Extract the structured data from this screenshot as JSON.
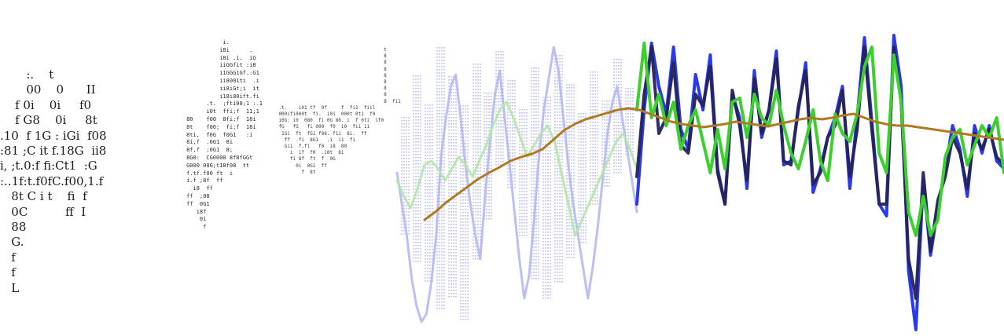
{
  "ascii_panels": {
    "panel_1": [
      "       :.    t",
      "       00    0      II",
      "    f 0i    0i     f0",
      "    f G8    0i     8t",
      ".10  f 1G : iGi  f08",
      ":81 ;C it f.18G  ii8",
      "i, ;t.0:f fi:Ct1  :G",
      ":..1f:t.f0fC.f00,1.f",
      "   8t C i t    fi  f",
      "   0C          ff  I",
      "   88",
      "   G.",
      "   f",
      "   f",
      "   L"
    ],
    "panel_2": [
      "                i.",
      "               i8i      .",
      "               i8i .i.  iG",
      "               iiGGfit :i8",
      "               i1GGG1Gf.:G1",
      "               ii8001ti  .i",
      "               ii8iGt;i  it",
      "               i18i80ift.fi",
      "           .t.  ;fti00;1 :.1",
      "           i0t  ffi;f  11;1",
      "     80    f00  8fi;f  18i",
      "     8t    f00;  fi;f  18i",
      "     8ti,  f0G  f0G1   :i",
      "     8i,f  .0G1  8i",
      "     8f,f  ;0G1  8;",
      "     8G0:  CG0000 8f8fGGt",
      "     G000 00G;t18f08  tt",
      "     f.tf.f00 ft  i",
      "     i.f ;8f  ff",
      "       i8  ff",
      "     ff  ;08",
      "     ff  0G1",
      "        i8f",
      "         0i",
      "          f"
    ],
    "panel_3": [
      "                                         t",
      "                                         8",
      "                                         8",
      "                                         8",
      "                                         8",
      "                                         8",
      "                                         8",
      "                                         8",
      "                                         8  fi1",
      "    .t.    i01 tf  0f     f  fi1  fiil",
      "    000ifi000t  fi.  i01  000t 0t1  f0",
      "    i0G: i0  080  fi 0G 80. i  f 0ti  if0",
      "    fG   fG   fi 000  f0  i0  fii 11",
      "     1Gi  ft  fG1 f08. f1i  8i.  ff",
      "      ff  .fi  8G1   .i  i1  fi",
      "      Gi1  f.fi   f0  i8  80",
      "        i  1f  f0  .i8t  8i",
      "        fi 8f  ft  f  0G",
      "          0i  0G1  ff",
      "            f  8t"
    ]
  },
  "waveform": {
    "colors": {
      "blue": "#2b3ae8",
      "navy": "#23235a",
      "green": "#3ccf2e",
      "brown": "#b07a22",
      "pale_blue": "#b4b8f2",
      "pale_green": "#b4e6a8"
    },
    "series": {
      "blue": [
        260,
        140,
        55,
        110,
        145,
        60,
        165,
        190,
        95,
        140,
        70,
        215,
        260,
        120,
        150,
        240,
        90,
        175,
        140,
        65,
        210,
        205,
        140,
        80,
        245,
        215,
        175,
        150,
        110,
        240,
        150,
        48,
        155,
        260,
        275,
        45,
        110,
        345,
        420,
        230,
        325,
        265,
        215,
        160,
        190,
        250,
        160,
        195,
        160,
        205,
        215
      ],
      "navy": [
        225,
        120,
        60,
        170,
        150,
        80,
        185,
        195,
        120,
        135,
        85,
        220,
        260,
        115,
        160,
        230,
        100,
        170,
        140,
        75,
        205,
        210,
        135,
        90,
        235,
        220,
        175,
        160,
        115,
        225,
        165,
        60,
        165,
        260,
        260,
        60,
        130,
        330,
        380,
        220,
        320,
        255,
        225,
        175,
        195,
        240,
        170,
        190,
        165,
        200,
        210
      ],
      "green": [
        140,
        55,
        150,
        120,
        160,
        130,
        190,
        160,
        140,
        180,
        220,
        165,
        215,
        130,
        125,
        175,
        120,
        150,
        160,
        115,
        160,
        195,
        215,
        180,
        140,
        205,
        230,
        145,
        170,
        180,
        145,
        85,
        60,
        195,
        220,
        70,
        130,
        270,
        300,
        250,
        300,
        280,
        200,
        175,
        165,
        210,
        185,
        160,
        175,
        150,
        220
      ],
      "brown": [
        280,
        270,
        258,
        248,
        238,
        228,
        220,
        213,
        205,
        200,
        196,
        190,
        178,
        166,
        158,
        152,
        148,
        144,
        140,
        138,
        140,
        145,
        150,
        155,
        158,
        160,
        162,
        160,
        158,
        155,
        157,
        159,
        161,
        158,
        155,
        152,
        150,
        152,
        150,
        147,
        145,
        150,
        155,
        158,
        160,
        160,
        162,
        164,
        166,
        168,
        170,
        172,
        174,
        176,
        178
      ],
      "pale_blue": [
        220,
        260,
        300,
        355,
        390,
        410,
        400,
        360,
        300,
        200,
        150,
        110,
        95,
        150,
        210,
        260,
        300,
        330,
        250,
        180,
        120,
        90,
        150,
        210,
        270,
        330,
        380,
        350,
        280,
        200,
        140,
        100,
        60,
        90,
        150,
        210,
        260,
        300,
        340,
        380,
        340,
        290,
        230,
        170,
        130,
        110,
        150,
        190,
        230,
        270
      ],
      "pale_green": [
        230,
        250,
        265,
        240,
        210,
        205,
        215,
        230,
        215,
        200,
        210,
        225,
        205,
        185,
        160,
        140,
        130,
        150,
        175,
        200,
        185,
        170,
        160,
        180,
        220,
        260,
        300,
        280,
        260,
        240,
        220,
        200,
        180,
        170,
        190,
        215
      ]
    },
    "stipple": {
      "blue_columns": [
        [
          560,
          395
        ],
        [
          575,
          380
        ],
        [
          590,
          410
        ],
        [
          606,
          330
        ],
        [
          620,
          280
        ],
        [
          635,
          210
        ],
        [
          650,
          240
        ],
        [
          665,
          300
        ],
        [
          680,
          355
        ],
        [
          695,
          380
        ],
        [
          710,
          360
        ],
        [
          725,
          330
        ],
        [
          740,
          310
        ],
        [
          755,
          260
        ],
        [
          770,
          240
        ],
        [
          785,
          220
        ],
        [
          800,
          200
        ],
        [
          515,
          300
        ],
        [
          530,
          335
        ],
        [
          545,
          360
        ]
      ]
    }
  }
}
